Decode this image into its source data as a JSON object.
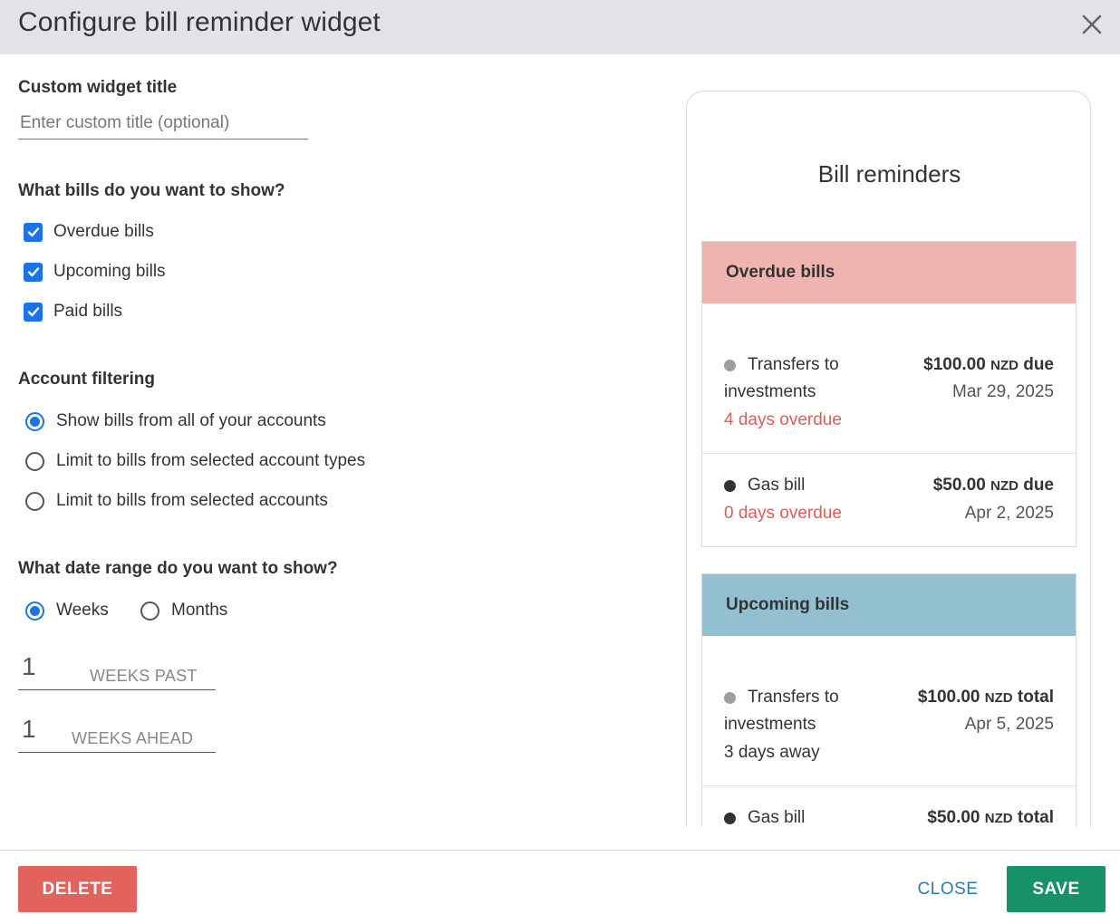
{
  "dialog": {
    "title": "Configure bill reminder widget",
    "close_icon": "close-icon"
  },
  "form": {
    "custom_title": {
      "label": "Custom widget title",
      "value": "",
      "placeholder": "Enter custom title (optional)"
    },
    "bills_to_show": {
      "label": "What bills do you want to show?",
      "options": [
        {
          "label": "Overdue bills",
          "checked": true
        },
        {
          "label": "Upcoming bills",
          "checked": true
        },
        {
          "label": "Paid bills",
          "checked": true
        }
      ]
    },
    "account_filtering": {
      "label": "Account filtering",
      "options": [
        {
          "label": "Show bills from all of your accounts",
          "selected": true
        },
        {
          "label": "Limit to bills from selected account types",
          "selected": false
        },
        {
          "label": "Limit to bills from selected accounts",
          "selected": false
        }
      ]
    },
    "date_range": {
      "label": "What date range do you want to show?",
      "options": [
        {
          "label": "Weeks",
          "selected": true
        },
        {
          "label": "Months",
          "selected": false
        }
      ],
      "past": {
        "value": "1",
        "suffix": "WEEKS PAST"
      },
      "ahead": {
        "value": "1",
        "suffix": "WEEKS AHEAD"
      }
    }
  },
  "preview": {
    "title": "Bill reminders",
    "overdue": {
      "heading": "Overdue bills",
      "color": "#efb4af",
      "bills": [
        {
          "name": "Transfers to investments",
          "amount": "$100.00",
          "currency": "NZD",
          "amount_suffix": "due",
          "date": "Mar 29, 2025",
          "status": "4 days overdue",
          "dot_color": "#9e9e9e"
        },
        {
          "name": "Gas bill",
          "amount": "$50.00",
          "currency": "NZD",
          "amount_suffix": "due",
          "date": "Apr 2, 2025",
          "status": "0 days overdue",
          "dot_color": "#333333"
        }
      ]
    },
    "upcoming": {
      "heading": "Upcoming bills",
      "color": "#93c0d0",
      "bills": [
        {
          "name": "Transfers to investments",
          "amount": "$100.00",
          "currency": "NZD",
          "amount_suffix": "total",
          "date": "Apr 5, 2025",
          "status": "3 days away",
          "dot_color": "#9e9e9e"
        },
        {
          "name": "Gas bill",
          "amount": "$50.00",
          "currency": "NZD",
          "amount_suffix": "total",
          "dot_color": "#333333"
        }
      ]
    },
    "overdue_status_color": "#e05c57"
  },
  "footer": {
    "delete_label": "DELETE",
    "close_label": "CLOSE",
    "save_label": "SAVE"
  }
}
